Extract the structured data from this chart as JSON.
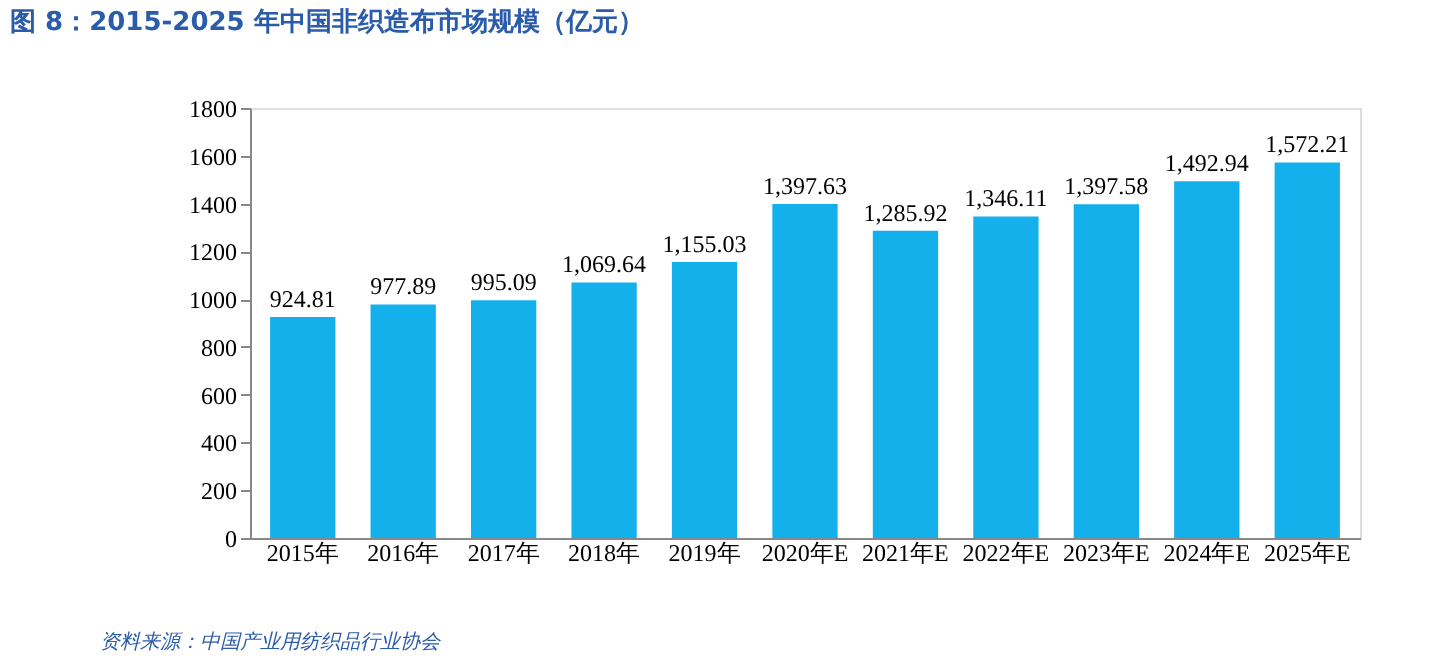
{
  "chart_data": {
    "type": "bar",
    "title": "图 8：2015-2025 年中国非织造布市场规模（亿元）",
    "categories": [
      "2015年",
      "2016年",
      "2017年",
      "2018年",
      "2019年",
      "2020年E",
      "2021年E",
      "2022年E",
      "2023年E",
      "2024年E",
      "2025年E"
    ],
    "values": [
      924.81,
      977.89,
      995.09,
      1069.64,
      1155.03,
      1397.63,
      1285.92,
      1346.11,
      1397.58,
      1492.94,
      1572.21
    ],
    "value_labels": [
      "924.81",
      "977.89",
      "995.09",
      "1,069.64",
      "1,155.03",
      "1,397.63",
      "1,285.92",
      "1,346.11",
      "1,397.58",
      "1,492.94",
      "1,572.21"
    ],
    "color": "#13b0ec",
    "ylim": [
      0,
      1800
    ],
    "yticks": [
      0,
      200,
      400,
      600,
      800,
      1000,
      1200,
      1400,
      1600,
      1800
    ],
    "grid": false,
    "legend": false,
    "annotations": [
      "资料来源：中国产业用纺织品行业协会"
    ]
  }
}
